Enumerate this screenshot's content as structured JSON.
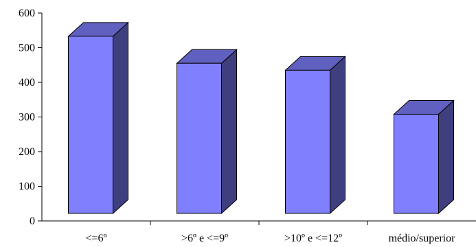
{
  "chart_data": {
    "type": "bar",
    "style": "3d-column",
    "categories": [
      "<=6º",
      ">6º e <=9º",
      ">10º e <=12º",
      "médio/superior"
    ],
    "values": [
      533,
      455,
      435,
      308
    ],
    "title": "",
    "xlabel": "",
    "ylabel": "",
    "ylim": [
      0,
      600
    ],
    "yticks": [
      0,
      100,
      200,
      300,
      400,
      500,
      600
    ],
    "grid": false,
    "legend": "none",
    "colors": {
      "bar_front": "#8080FF",
      "bar_side": "#3F3F7F",
      "bar_top": "#6060C0",
      "outline": "#000000"
    }
  }
}
